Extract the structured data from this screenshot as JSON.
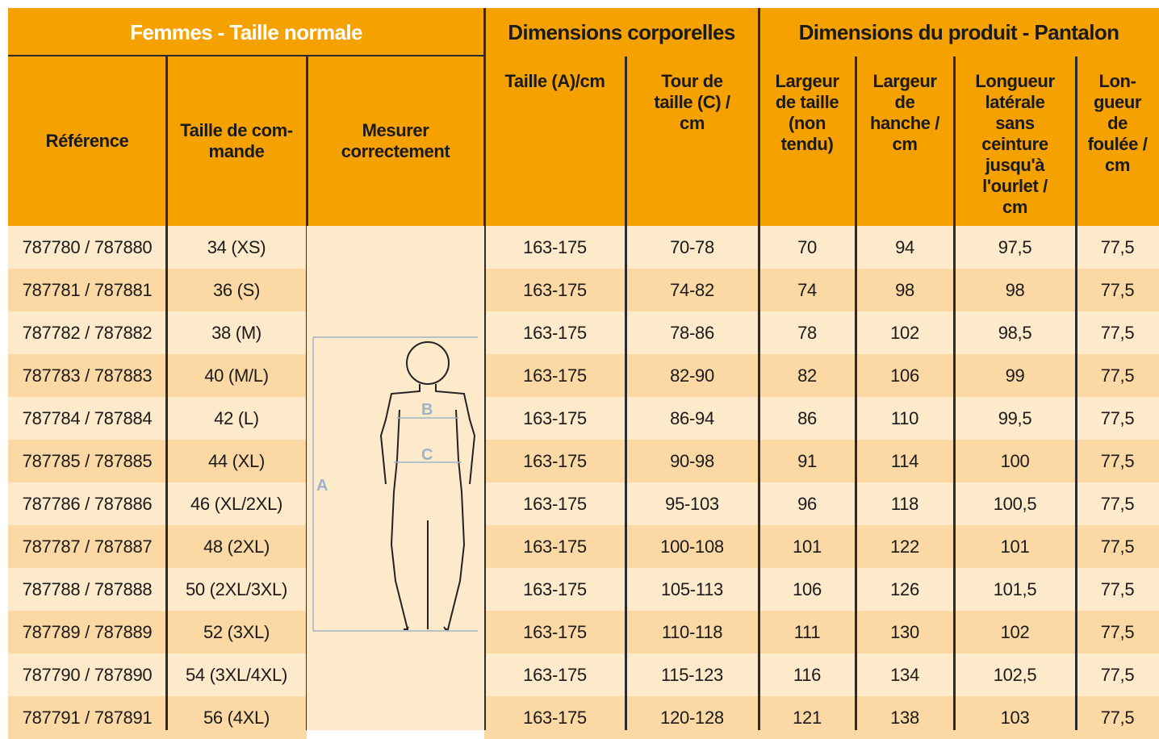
{
  "header": {
    "groups": [
      "Femmes - Taille normale",
      "Dimensions corporelles",
      "Dimensions du produit - Pantalon"
    ],
    "columns": [
      "Référence",
      "Taille de com-\nmande",
      "Mesurer\ncorrectement",
      "Taille (A)/cm",
      "Tour de\ntaille (C) /\ncm",
      "Largeur\nde taille\n(non\ntendu)",
      "Largeur\nde\nhanche /\ncm",
      "Longueur\nlatérale\nsans\nceinture\njusqu'à\nl'ourlet /\ncm",
      "Lon-\ngueur\nde\nfoulée /\ncm"
    ]
  },
  "table": {
    "rows": [
      [
        "787780 / 787880",
        "34 (XS)",
        "163-175",
        "70-78",
        "70",
        "94",
        "97,5",
        "77,5"
      ],
      [
        "787781 / 787881",
        "36 (S)",
        "163-175",
        "74-82",
        "74",
        "98",
        "98",
        "77,5"
      ],
      [
        "787782 / 787882",
        "38 (M)",
        "163-175",
        "78-86",
        "78",
        "102",
        "98,5",
        "77,5"
      ],
      [
        "787783 / 787883",
        "40 (M/L)",
        "163-175",
        "82-90",
        "82",
        "106",
        "99",
        "77,5"
      ],
      [
        "787784 / 787884",
        "42 (L)",
        "163-175",
        "86-94",
        "86",
        "110",
        "99,5",
        "77,5"
      ],
      [
        "787785 / 787885",
        "44 (XL)",
        "163-175",
        "90-98",
        "91",
        "114",
        "100",
        "77,5"
      ],
      [
        "787786 / 787886",
        "46 (XL/2XL)",
        "163-175",
        "95-103",
        "96",
        "118",
        "100,5",
        "77,5"
      ],
      [
        "787787 / 787887",
        "48 (2XL)",
        "163-175",
        "100-108",
        "101",
        "122",
        "101",
        "77,5"
      ],
      [
        "787788 / 787888",
        "50 (2XL/3XL)",
        "163-175",
        "105-113",
        "106",
        "126",
        "101,5",
        "77,5"
      ],
      [
        "787789 / 787889",
        "52 (3XL)",
        "163-175",
        "110-118",
        "111",
        "130",
        "102",
        "77,5"
      ],
      [
        "787790 / 787890",
        "54 (3XL/4XL)",
        "163-175",
        "115-123",
        "116",
        "134",
        "102,5",
        "77,5"
      ],
      [
        "787791 / 787891",
        "56 (4XL)",
        "163-175",
        "120-128",
        "121",
        "138",
        "103",
        "77,5"
      ]
    ]
  },
  "figure": {
    "labels": [
      "A",
      "B",
      "C"
    ]
  }
}
